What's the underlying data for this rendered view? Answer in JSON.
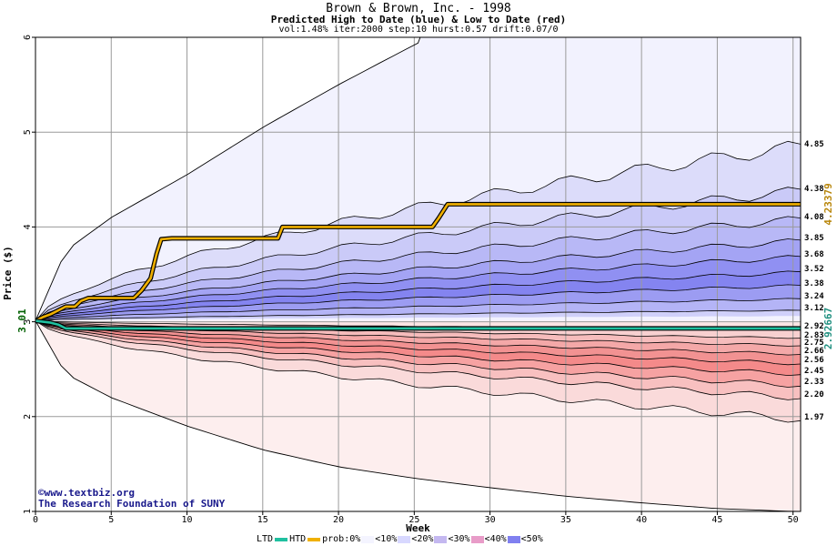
{
  "header": {
    "title": "Brown & Brown, Inc. - 1998",
    "subtitle": "Predicted High to Date (blue) &  Low to Date (red)",
    "params": "vol:1.48% iter:2000 step:10 hurst:0.57 drift:0.07/0"
  },
  "credits": {
    "line1": "©www.textbiz.org",
    "line2": "The Research Foundation of SUNY"
  },
  "legend": {
    "ltd_label": "LTD",
    "htd_label": "HTD",
    "prob_label": "prob:0%",
    "buckets": [
      "<10%",
      "<20%",
      "<30%",
      "<40%",
      "<50%"
    ],
    "ltd_color": "#20c0a0",
    "htd_color": "#f0b000",
    "bucket_colors": [
      "#f4f4ff",
      "#d8d8ff",
      "#c4b8f0",
      "#e89cc8",
      "#8080f0"
    ]
  },
  "chart_data": {
    "type": "area",
    "title": "Brown & Brown, Inc. - 1998",
    "subtitle": "Predicted High to Date (blue) &  Low to Date (red)",
    "xlabel": "Week",
    "ylabel": "Price ($)",
    "xlim": [
      0,
      50.5
    ],
    "ylim": [
      1,
      6
    ],
    "x_ticks": [
      0,
      5,
      10,
      15,
      20,
      25,
      30,
      35,
      40,
      45,
      50
    ],
    "y_ticks": [
      1,
      2,
      3,
      4,
      5,
      6
    ],
    "grid": true,
    "start_price": 3.01,
    "start_label": "3.01",
    "upper_band_ends": [
      4.85,
      4.38,
      4.08,
      3.85,
      3.68,
      3.52,
      3.38,
      3.24,
      3.12
    ],
    "upper_band_labels": [
      "4.85",
      "4.38",
      "4.08",
      "3.85",
      "3.68",
      "3.52",
      "3.38",
      "3.24",
      "3.12"
    ],
    "lower_band_ends": [
      2.92,
      2.83,
      2.75,
      2.66,
      2.56,
      2.45,
      2.33,
      2.2,
      1.97
    ],
    "lower_band_labels": [
      "2.92",
      "2.83",
      "2.75",
      "2.66",
      "2.56",
      "2.45",
      "2.33",
      "2.20",
      "1.97"
    ],
    "envelope": {
      "upper_x": [
        0,
        2,
        5,
        10,
        15,
        20,
        25,
        26
      ],
      "upper_y": [
        3.01,
        3.75,
        4.1,
        4.55,
        5.05,
        5.5,
        5.92,
        6.0
      ],
      "lower_x": [
        0,
        2,
        5,
        10,
        15,
        20,
        25,
        30,
        35,
        40,
        45,
        50
      ],
      "lower_y": [
        3.01,
        2.45,
        2.2,
        1.9,
        1.65,
        1.47,
        1.35,
        1.25,
        1.16,
        1.09,
        1.03,
        1.0
      ]
    },
    "series": [
      {
        "name": "HTD",
        "color": "#f0b000",
        "x": [
          0,
          0.5,
          1,
          1.5,
          2,
          2.6,
          3,
          3.5,
          4,
          6.5,
          7,
          7.6,
          8,
          8.3,
          9,
          14,
          16,
          16.3,
          18,
          26.2,
          26.6,
          27.2,
          28,
          50.5
        ],
        "y": [
          3.01,
          3.05,
          3.08,
          3.12,
          3.16,
          3.16,
          3.22,
          3.25,
          3.25,
          3.25,
          3.33,
          3.46,
          3.72,
          3.87,
          3.88,
          3.88,
          3.88,
          4.0,
          4.0,
          4.0,
          4.09,
          4.24,
          4.24,
          4.24
        ],
        "end_label": "4.23379"
      },
      {
        "name": "LTD",
        "color": "#20c0a0",
        "x": [
          0,
          1,
          1.5,
          2,
          50.5
        ],
        "y": [
          3.01,
          2.99,
          2.97,
          2.93,
          2.93
        ],
        "end_label": "2.92667"
      }
    ]
  }
}
